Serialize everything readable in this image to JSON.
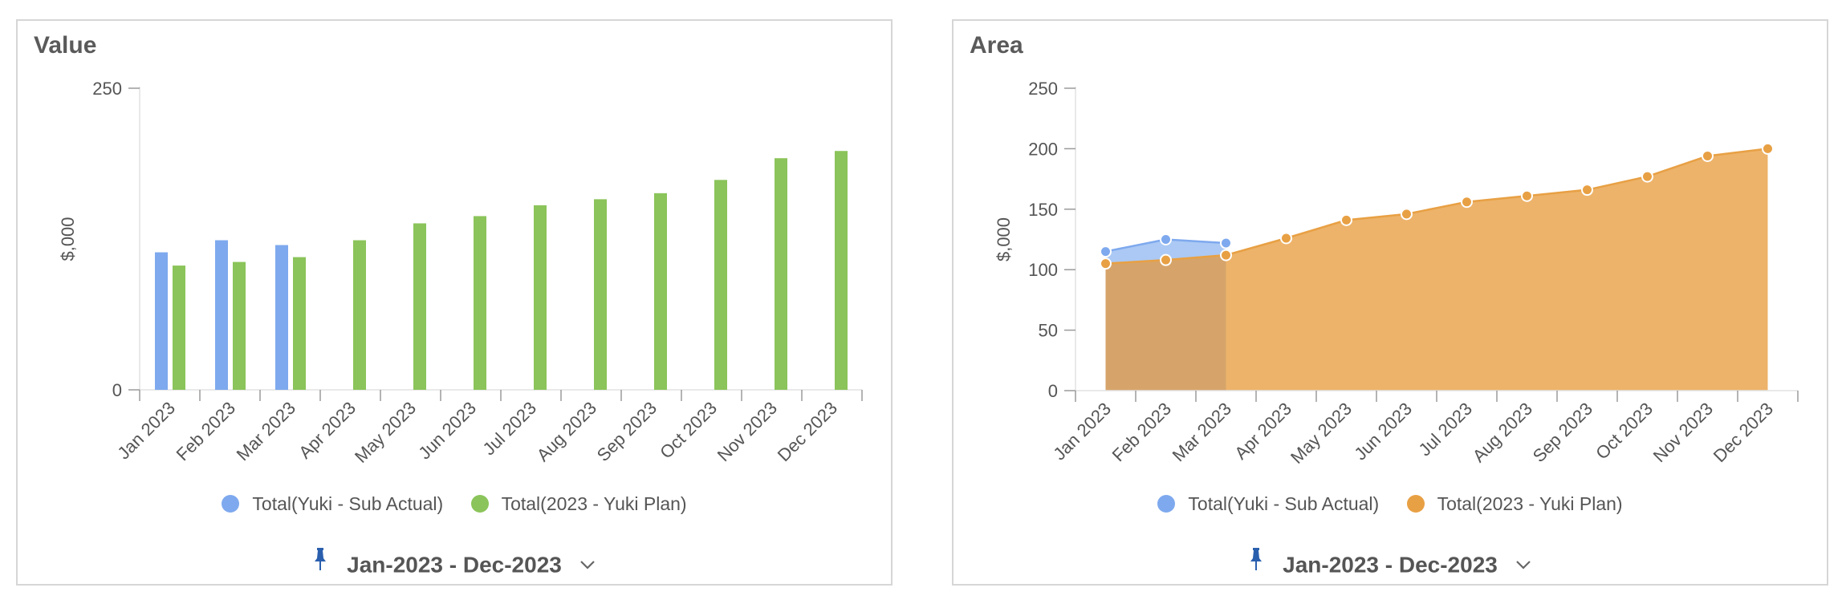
{
  "colors": {
    "actual_blue": "#7ea9ee",
    "plan_green": "#8bc45a",
    "plan_orange": "#e8a044",
    "area_orange_fill": "#edb36a",
    "area_blue_fill": "#a7c6f3",
    "overlap_fill": "#d6a46a",
    "pin_blue": "#2a5fae"
  },
  "panels": {
    "value": {
      "title": "Value",
      "range_label": "Jan-2023 - Dec-2023"
    },
    "area": {
      "title": "Area",
      "range_label": "Jan-2023 - Dec-2023"
    }
  },
  "legend": {
    "actual": "Total(Yuki - Sub Actual)",
    "plan": "Total(2023 - Yuki Plan)"
  },
  "chart_data": [
    {
      "type": "bar",
      "title": "Value",
      "ylabel": "$,000",
      "ylim": [
        0,
        250
      ],
      "yticks": [
        0,
        250
      ],
      "categories": [
        "Jan 2023",
        "Feb 2023",
        "Mar 2023",
        "Apr 2023",
        "May 2023",
        "Jun 2023",
        "Jul 2023",
        "Aug 2023",
        "Sep 2023",
        "Oct 2023",
        "Nov 2023",
        "Dec 2023"
      ],
      "series": [
        {
          "name": "Total(Yuki - Sub Actual)",
          "values": [
            114,
            124,
            120,
            null,
            null,
            null,
            null,
            null,
            null,
            null,
            null,
            null
          ]
        },
        {
          "name": "Total(2023 - Yuki Plan)",
          "values": [
            103,
            106,
            110,
            124,
            138,
            144,
            153,
            158,
            163,
            174,
            192,
            198
          ]
        }
      ],
      "legend_position": "bottom"
    },
    {
      "type": "area",
      "title": "Area",
      "ylabel": "$,000",
      "ylim": [
        0,
        250
      ],
      "yticks": [
        0,
        50,
        100,
        150,
        200,
        250
      ],
      "categories": [
        "Jan 2023",
        "Feb 2023",
        "Mar 2023",
        "Apr 2023",
        "May 2023",
        "Jun 2023",
        "Jul 2023",
        "Aug 2023",
        "Sep 2023",
        "Oct 2023",
        "Nov 2023",
        "Dec 2023"
      ],
      "series": [
        {
          "name": "Total(Yuki - Sub Actual)",
          "values": [
            115,
            125,
            122,
            null,
            null,
            null,
            null,
            null,
            null,
            null,
            null,
            null
          ]
        },
        {
          "name": "Total(2023 - Yuki Plan)",
          "values": [
            105,
            108,
            112,
            126,
            141,
            146,
            156,
            161,
            166,
            177,
            194,
            200
          ]
        }
      ],
      "legend_position": "bottom"
    }
  ]
}
